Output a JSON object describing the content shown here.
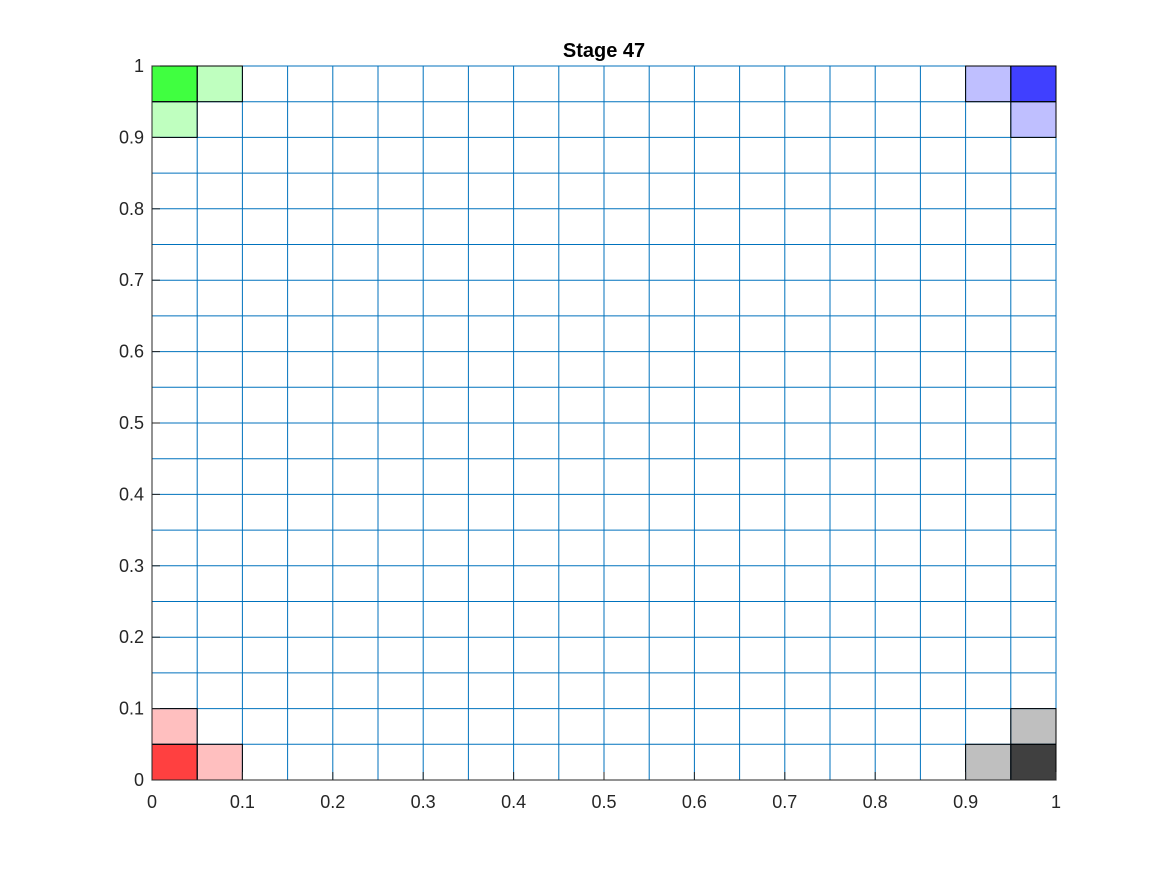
{
  "chart_data": {
    "type": "heatmap",
    "title": "Stage 47",
    "xlabel": "",
    "ylabel": "",
    "xlim": [
      0,
      1
    ],
    "ylim": [
      0,
      1
    ],
    "grid_size": 20,
    "cell_size": 0.05,
    "grid_line_color": "#0072BD",
    "axis_color": "#262626",
    "x_ticks": [
      0,
      0.1,
      0.2,
      0.3,
      0.4,
      0.5,
      0.6,
      0.7,
      0.8,
      0.9,
      1
    ],
    "x_tick_labels": [
      "0",
      "0.1",
      "0.2",
      "0.3",
      "0.4",
      "0.5",
      "0.6",
      "0.7",
      "0.8",
      "0.9",
      "1"
    ],
    "y_ticks": [
      0,
      0.1,
      0.2,
      0.3,
      0.4,
      0.5,
      0.6,
      0.7,
      0.8,
      0.9,
      1
    ],
    "y_tick_labels": [
      "0",
      "0.1",
      "0.2",
      "0.3",
      "0.4",
      "0.5",
      "0.6",
      "0.7",
      "0.8",
      "0.9",
      "1"
    ],
    "cells": [
      {
        "x": 0.0,
        "y": 0.95,
        "color": "#40FF40"
      },
      {
        "x": 0.05,
        "y": 0.95,
        "color": "#BFFFBF"
      },
      {
        "x": 0.0,
        "y": 0.9,
        "color": "#BFFFBF"
      },
      {
        "x": 0.95,
        "y": 0.95,
        "color": "#4040FF"
      },
      {
        "x": 0.9,
        "y": 0.95,
        "color": "#BFBFFF"
      },
      {
        "x": 0.95,
        "y": 0.9,
        "color": "#BFBFFF"
      },
      {
        "x": 0.0,
        "y": 0.0,
        "color": "#FF4040"
      },
      {
        "x": 0.05,
        "y": 0.0,
        "color": "#FFBFBF"
      },
      {
        "x": 0.0,
        "y": 0.05,
        "color": "#FFBFBF"
      },
      {
        "x": 0.95,
        "y": 0.0,
        "color": "#404040"
      },
      {
        "x": 0.9,
        "y": 0.0,
        "color": "#BFBFBF"
      },
      {
        "x": 0.95,
        "y": 0.05,
        "color": "#BFBFBF"
      }
    ]
  }
}
